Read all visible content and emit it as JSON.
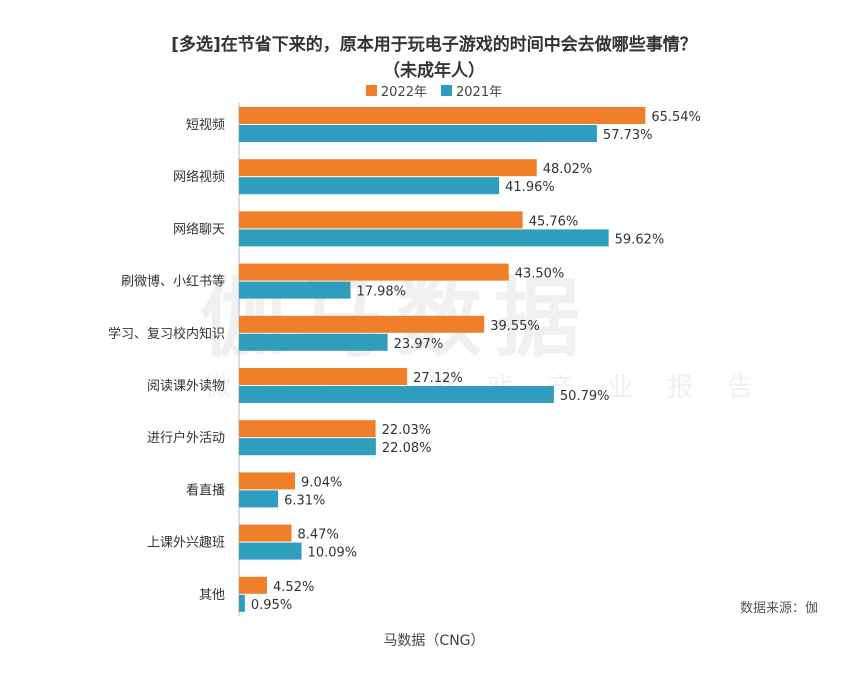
{
  "title_line1": "[多选]在节省下来的，原本用于玩电子游戏的时间中会去做哪些事情？",
  "title_line2": "（未成年人）",
  "source": "数据来源：伽",
  "footer": "马数据（CNG）",
  "watermark": "伽马数据",
  "watermark_sub": "微信号 游戏产业报告",
  "colors": {
    "s2022": "#F07F2A",
    "s2021": "#2E9DBE"
  },
  "chart_data": {
    "type": "bar",
    "orientation": "horizontal",
    "categories": [
      "短视频",
      "网络视频",
      "网络聊天",
      "刷微博、小红书等",
      "学习、复习校内知识",
      "阅读课外读物",
      "进行户外活动",
      "看直播",
      "上课外兴趣班",
      "其他"
    ],
    "series": [
      {
        "name": "2022年",
        "values": [
          65.54,
          48.02,
          45.76,
          43.5,
          39.55,
          27.12,
          22.03,
          9.04,
          8.47,
          4.52
        ],
        "labels": [
          "65.54%",
          "48.02%",
          "45.76%",
          "43.50%",
          "39.55%",
          "27.12%",
          "22.03%",
          "9.04%",
          "8.47%",
          "4.52%"
        ]
      },
      {
        "name": "2021年",
        "values": [
          57.73,
          41.96,
          59.62,
          17.98,
          23.97,
          50.79,
          22.08,
          6.31,
          10.09,
          0.95
        ],
        "labels": [
          "57.73%",
          "41.96%",
          "59.62%",
          "17.98%",
          "23.97%",
          "50.79%",
          "22.08%",
          "6.31%",
          "10.09%",
          "0.95%"
        ]
      }
    ],
    "xlim": [
      0,
      70
    ],
    "legend_position": "top-center"
  }
}
